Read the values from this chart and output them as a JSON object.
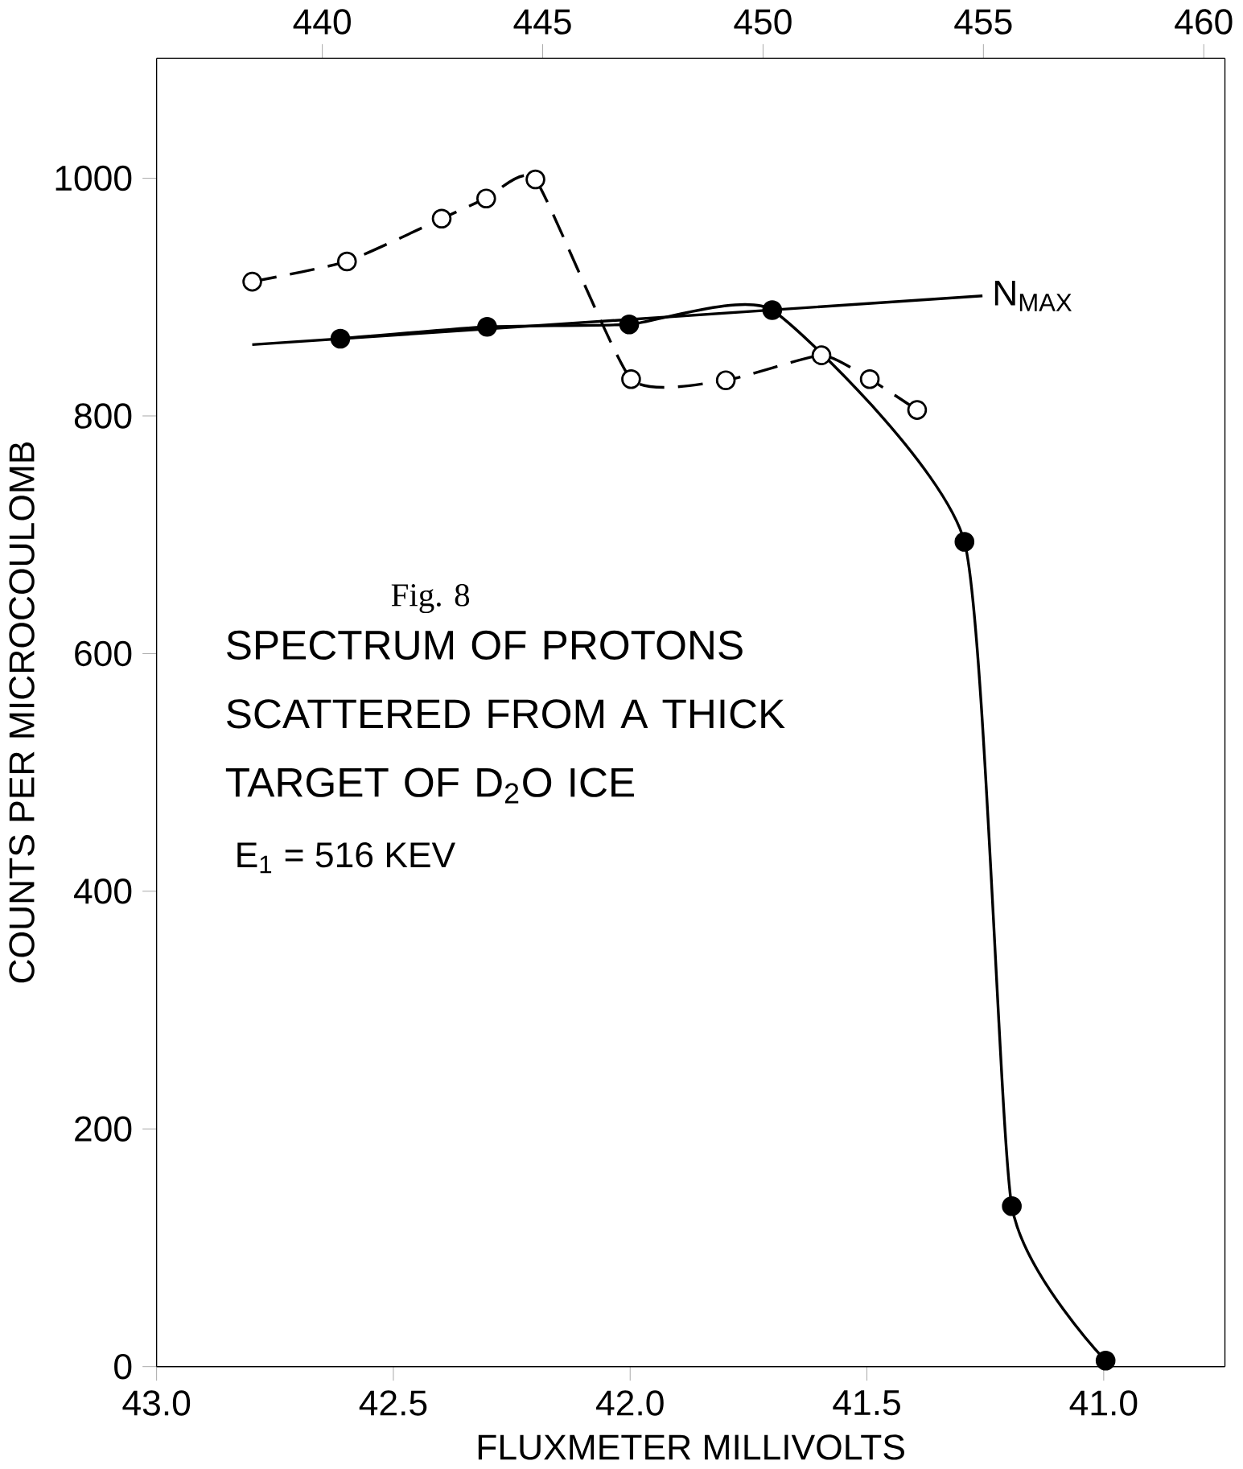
{
  "chart_data": {
    "type": "line",
    "title": "SPECTRUM OF PROTONS SCATTERED FROM A THICK TARGET OF D$_{2}$O ICE",
    "xlabel": "FLUXMETER MILLIVOLTS",
    "ylabel": "COUNTS PER MICROCOULOMB",
    "annotations": [
      "Fig. 8",
      "E$_{1}$ = 516 KEV"
    ],
    "xlim": [
      43.0,
      40.744
    ],
    "xticks": [
      {
        "value": 43,
        "label": "43.0"
      },
      42.5,
      {
        "value": 42,
        "label": "42.0"
      },
      41.5,
      {
        "value": 41,
        "label": "41.0"
      }
    ],
    "x2lim": [
      436.24,
      460.48
    ],
    "x2ticks": [
      440,
      445,
      450,
      455,
      460
    ],
    "ylim": [
      0,
      1101
    ],
    "yticks": [
      0,
      200,
      400,
      600,
      800,
      1000
    ],
    "series": [
      {
        "color": "#000000",
        "line_style": "solid",
        "marker": "circle",
        "x": [
          42.612,
          42.302,
          42.002,
          41.7,
          41.294,
          41.194,
          40.996
        ],
        "values": [
          865,
          875,
          877,
          889,
          694,
          135,
          5
        ]
      },
      {
        "color": "#000000",
        "line_style": "dashed",
        "marker": "circle",
        "x": [
          42.798,
          42.598,
          42.398,
          42.304,
          42.2,
          41.998,
          41.798,
          41.596,
          41.494,
          41.394
        ],
        "values": [
          913,
          930,
          966,
          983,
          999,
          831,
          830,
          851,
          831,
          805
        ]
      },
      {
        "name": "N$_{MAX}$",
        "color": "#000000",
        "line_style": "solid",
        "marker": "none",
        "x": [
          42.798,
          41.256
        ],
        "values": [
          860,
          901
        ]
      }
    ]
  }
}
